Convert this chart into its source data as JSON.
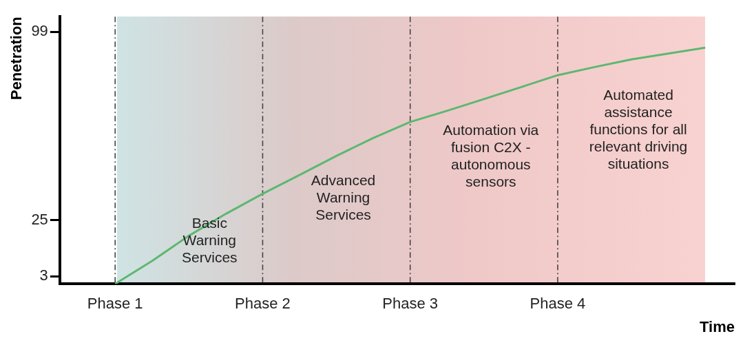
{
  "chart_data": {
    "type": "line",
    "xlabel": "Time",
    "ylabel": "Penetration",
    "categories": [
      "Phase 1",
      null,
      null,
      null,
      "Phase 2",
      null,
      null,
      null,
      "Phase 3",
      null,
      null,
      null,
      "Phase 4",
      null,
      null,
      null,
      null
    ],
    "series": [
      {
        "color": "#5cb870",
        "values": [
          0,
          9,
          18.9,
          27.5,
          35.4,
          42.8,
          50.3,
          57.3,
          63.6,
          68,
          72.6,
          77.3,
          82,
          85.2,
          88.2,
          90.5,
          92.8
        ]
      }
    ],
    "ylim": [
      0,
      105
    ],
    "yticks": [
      3,
      25,
      99
    ],
    "annotations": [
      "Basic Warning Services",
      "Advanced Warning Services",
      "Automation via fusion C2X - autonomous sensors",
      "Automated assistance functions for all relevant driving situations"
    ],
    "ref_lines": [
      {
        "axis": "x",
        "value": "Phase 1",
        "line_style": "dashed"
      },
      {
        "axis": "x",
        "value": "Phase 2",
        "line_style": "dashed"
      },
      {
        "axis": "x",
        "value": "Phase 3",
        "line_style": "dashed"
      },
      {
        "axis": "x",
        "value": "Phase 4",
        "line_style": "dashed"
      }
    ],
    "grid": false,
    "legend": false,
    "marker": "none",
    "line_style": "solid"
  }
}
